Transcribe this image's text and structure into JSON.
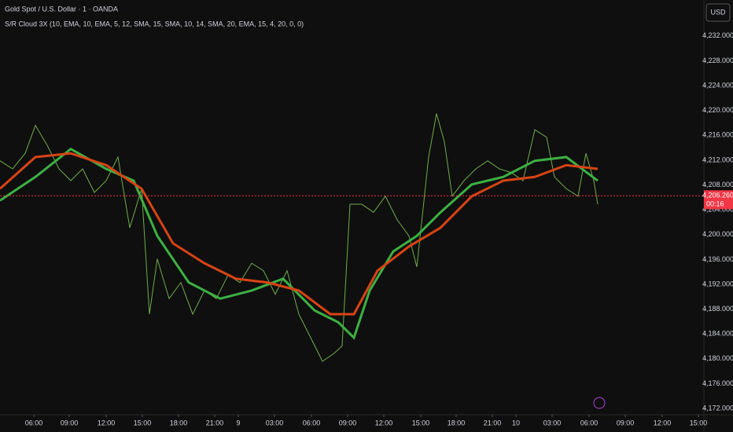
{
  "chart_data": {
    "type": "line",
    "title": "Gold Spot / U.S. Dollar · 1 · OANDA",
    "subtitle": "S/R Cloud 3X (10, EMA, 10, EMA, 5, 12, SMA, 15, SMA, 10, 14, SMA, 20, EMA, 15, 4, 20, 0, 0)",
    "currency": "USD",
    "current_price": {
      "value": 4206.26,
      "label": "4,206.260"
    },
    "countdown": "00:16",
    "xlim": [
      0,
      895
    ],
    "xticks": [
      {
        "value": 43,
        "label": "06:00"
      },
      {
        "value": 88,
        "label": "09:00"
      },
      {
        "value": 135,
        "label": "12:00"
      },
      {
        "value": 181,
        "label": "15:00"
      },
      {
        "value": 227,
        "label": "18:00"
      },
      {
        "value": 273,
        "label": "21:00"
      },
      {
        "value": 303,
        "label": "9"
      },
      {
        "value": 349,
        "label": "03:00"
      },
      {
        "value": 396,
        "label": "06:00"
      },
      {
        "value": 442,
        "label": "09:00"
      },
      {
        "value": 488,
        "label": "12:00"
      },
      {
        "value": 535,
        "label": "15:00"
      },
      {
        "value": 580,
        "label": "18:00"
      },
      {
        "value": 626,
        "label": "21:00"
      },
      {
        "value": 656,
        "label": "10"
      },
      {
        "value": 702,
        "label": "03:00"
      },
      {
        "value": 749,
        "label": "06:00"
      },
      {
        "value": 795,
        "label": "09:00"
      },
      {
        "value": 842,
        "label": "12:00"
      },
      {
        "value": 888,
        "label": "15:00"
      }
    ],
    "ylim": [
      4171,
      4237.8
    ],
    "yticks": [
      {
        "value": 4172,
        "label": "4,172.000"
      },
      {
        "value": 4176,
        "label": "4,176.000"
      },
      {
        "value": 4180,
        "label": "4,180.000"
      },
      {
        "value": 4184,
        "label": "4,184.000"
      },
      {
        "value": 4188,
        "label": "4,188.000"
      },
      {
        "value": 4192,
        "label": "4,192.000"
      },
      {
        "value": 4196,
        "label": "4,196.000"
      },
      {
        "value": 4200,
        "label": "4,200.000"
      },
      {
        "value": 4204,
        "label": "4,204.000"
      },
      {
        "value": 4208,
        "label": "4,208.000"
      },
      {
        "value": 4212,
        "label": "4,212.000"
      },
      {
        "value": 4216,
        "label": "4,216.000"
      },
      {
        "value": 4220,
        "label": "4,220.000"
      },
      {
        "value": 4224,
        "label": "4,224.000"
      },
      {
        "value": 4228,
        "label": "4,228.000"
      },
      {
        "value": 4232,
        "label": "4,232.000"
      }
    ],
    "series": [
      {
        "color": "#6fae4a",
        "width": 1,
        "x": [
          0,
          16,
          32,
          45,
          60,
          75,
          90,
          105,
          120,
          135,
          150,
          165,
          180,
          190,
          200,
          215,
          230,
          245,
          260,
          275,
          290,
          305,
          320,
          335,
          350,
          365,
          380,
          395,
          410,
          425,
          435,
          445,
          460,
          475,
          490,
          505,
          520,
          530,
          545,
          555,
          565,
          575,
          590,
          605,
          620,
          635,
          650,
          665,
          680,
          695,
          705,
          720,
          735,
          745,
          755,
          760
        ],
        "values": [
          4211.9,
          4210.6,
          4213.1,
          4217.6,
          4214.4,
          4210.6,
          4208.7,
          4210.6,
          4206.8,
          4208.7,
          4212.5,
          4201.1,
          4207.4,
          4187.2,
          4196.1,
          4189.7,
          4192.3,
          4187.2,
          4191.0,
          4189.7,
          4193.5,
          4192.3,
          4195.4,
          4194.2,
          4190.4,
          4194.2,
          4187.2,
          4183.4,
          4179.6,
          4180.9,
          4182.1,
          4204.9,
          4204.9,
          4203.6,
          4206.2,
          4202.4,
          4199.8,
          4194.8,
          4212.5,
          4219.5,
          4215.0,
          4206.2,
          4208.7,
          4210.6,
          4211.9,
          4210.6,
          4210.0,
          4208.7,
          4216.9,
          4215.7,
          4209.3,
          4207.4,
          4206.2,
          4213.1,
          4208.7,
          4204.9
        ]
      },
      {
        "color": "#3cb043",
        "width": 3,
        "x": [
          0,
          45,
          90,
          135,
          170,
          200,
          240,
          280,
          320,
          360,
          400,
          430,
          450,
          470,
          500,
          530,
          560,
          600,
          640,
          680,
          720,
          760
        ],
        "values": [
          4205.5,
          4209.3,
          4213.8,
          4210.6,
          4208.7,
          4199.8,
          4192.3,
          4189.7,
          4191.0,
          4192.9,
          4187.8,
          4185.9,
          4183.4,
          4191.0,
          4197.3,
          4199.8,
          4203.6,
          4208.1,
          4209.3,
          4211.9,
          4212.5,
          4208.7
        ]
      },
      {
        "color": "#d84315",
        "width": 3,
        "x": [
          0,
          45,
          90,
          135,
          180,
          220,
          260,
          300,
          340,
          380,
          420,
          450,
          480,
          520,
          560,
          600,
          640,
          680,
          720,
          760
        ],
        "values": [
          4207.4,
          4212.5,
          4213.1,
          4211.2,
          4207.4,
          4198.6,
          4195.4,
          4192.9,
          4192.3,
          4191.0,
          4187.2,
          4187.2,
          4194.2,
          4198.1,
          4201.1,
          4206.2,
          4208.7,
          4209.3,
          4211.2,
          4210.6
        ]
      }
    ]
  }
}
